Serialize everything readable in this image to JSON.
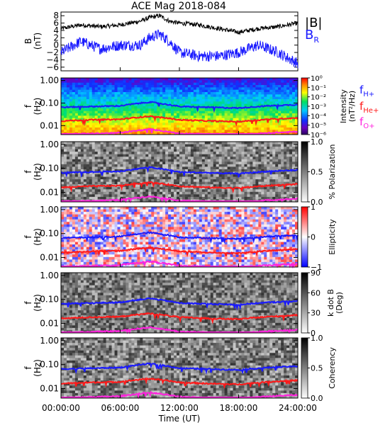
{
  "title": "ACE Mag 2018-084",
  "xlabel": "Time (UT)",
  "x_ticks": [
    "00:00:00",
    "06:00:00",
    "12:00:00",
    "18:00:00",
    "24:00:00"
  ],
  "colors": {
    "B_mag": "#000000",
    "B_R": "#1a1aff",
    "f_H": "#1a1aff",
    "f_He": "#ff1a1a",
    "f_O": "#ff22dd"
  },
  "panels": {
    "mag": {
      "ylabel_top": "B",
      "ylabel_bottom": "(nT)",
      "y_ticks": [
        "8",
        "6",
        "4",
        "2",
        "0",
        "−2",
        "−4",
        "−6"
      ],
      "legend_B": "|B|",
      "legend_BR": "B",
      "legend_BR_sub": "R"
    },
    "f_ylabel_top": "f",
    "f_ylabel_bottom": "(Hz)",
    "f_ticks": [
      "1.00",
      "0.10",
      "0.01"
    ],
    "intensity": {
      "cb_ticks": [
        "10⁰",
        "10⁻¹",
        "10⁻²",
        "10⁻³",
        "10⁻⁴",
        "10⁻⁵",
        "10⁻⁶"
      ],
      "cb_label1": "Intensity",
      "cb_label2": "(nT²/Hz)",
      "leg_H": "f",
      "leg_H_sub": "H+",
      "leg_He": "f",
      "leg_He_sub": "He+",
      "leg_O": "f",
      "leg_O_sub": "O+"
    },
    "polarization": {
      "cb_ticks": [
        "1.0",
        "0.5",
        "0.0"
      ],
      "cb_label": "% Polarization"
    },
    "ellipticity": {
      "cb_ticks": [
        "1",
        "0",
        "−1"
      ],
      "cb_label": "Ellipticity"
    },
    "kdotb": {
      "cb_ticks": [
        "90",
        "60",
        "30",
        "0"
      ],
      "cb_label1": "k dot B",
      "cb_label2": "(Deg)"
    },
    "coherency": {
      "cb_ticks": [
        "1.0",
        "0.5",
        "0.0"
      ],
      "cb_label": "Coherency"
    }
  },
  "chart_data": [
    {
      "type": "line",
      "title": "ACE Mag 2018-084",
      "ylabel": "B (nT)",
      "xlabel": "Time (UT)",
      "ylim": [
        -7,
        9
      ],
      "x_hours": [
        0,
        2,
        4,
        6,
        8,
        9,
        10,
        11,
        12,
        14,
        16,
        18,
        20,
        22,
        24
      ],
      "series": [
        {
          "name": "|B|",
          "values": [
            4.5,
            5.5,
            5.0,
            5.5,
            6.5,
            7.5,
            8.0,
            6.5,
            6.0,
            5.5,
            4.5,
            3.5,
            4.5,
            5.0,
            6.0
          ]
        },
        {
          "name": "B_R",
          "values": [
            -2,
            1,
            -1,
            0,
            0,
            2,
            3,
            1,
            -2,
            -3,
            -3,
            -2,
            0,
            -2,
            -5
          ]
        }
      ]
    },
    {
      "type": "heatmap",
      "ylabel": "f (Hz)",
      "xlabel": "Time (UT)",
      "yscale": "log",
      "ylim": [
        0.004,
        1.3
      ],
      "xlim_hours": [
        0,
        24
      ],
      "panels": [
        "Intensity (nT²/Hz)",
        "% Polarization",
        "Ellipticity",
        "k dot B (Deg)",
        "Coherency"
      ],
      "x_hours": [
        0,
        3,
        6,
        9,
        12,
        15,
        18,
        21,
        24
      ],
      "series": [
        {
          "name": "f_H+",
          "values": [
            0.065,
            0.07,
            0.075,
            0.11,
            0.07,
            0.065,
            0.06,
            0.075,
            0.085
          ]
        },
        {
          "name": "f_He+",
          "values": [
            0.016,
            0.018,
            0.019,
            0.026,
            0.018,
            0.016,
            0.015,
            0.019,
            0.022
          ]
        },
        {
          "name": "f_O+",
          "values": [
            0.0041,
            0.0044,
            0.0048,
            0.0068,
            0.0045,
            0.0041,
            0.0038,
            0.0047,
            0.0054
          ]
        }
      ]
    }
  ]
}
